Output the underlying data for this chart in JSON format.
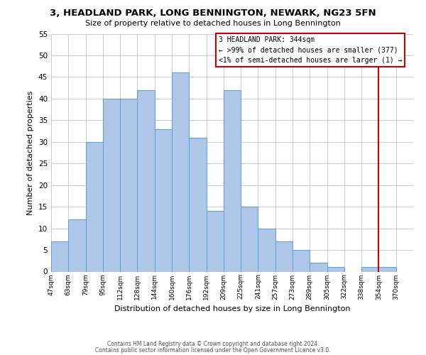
{
  "title": "3, HEADLAND PARK, LONG BENNINGTON, NEWARK, NG23 5FN",
  "subtitle": "Size of property relative to detached houses in Long Bennington",
  "xlabel": "Distribution of detached houses by size in Long Bennington",
  "ylabel": "Number of detached properties",
  "bin_labels": [
    "47sqm",
    "63sqm",
    "79sqm",
    "95sqm",
    "112sqm",
    "128sqm",
    "144sqm",
    "160sqm",
    "176sqm",
    "192sqm",
    "209sqm",
    "225sqm",
    "241sqm",
    "257sqm",
    "273sqm",
    "289sqm",
    "305sqm",
    "322sqm",
    "338sqm",
    "354sqm",
    "370sqm"
  ],
  "bar_values": [
    7,
    12,
    30,
    40,
    40,
    42,
    33,
    46,
    31,
    14,
    42,
    15,
    10,
    7,
    5,
    2,
    1,
    0,
    1,
    1,
    0
  ],
  "bar_color": "#aec6e8",
  "bar_edge_color": "#5a9fd4",
  "vline_color": "#cc0000",
  "ylim": [
    0,
    55
  ],
  "yticks": [
    0,
    5,
    10,
    15,
    20,
    25,
    30,
    35,
    40,
    45,
    50,
    55
  ],
  "annotation_title": "3 HEADLAND PARK: 344sqm",
  "annotation_line1": "← >99% of detached houses are smaller (377)",
  "annotation_line2": "<1% of semi-detached houses are larger (1) →",
  "annotation_box_color": "#cc0000",
  "footnote1": "Contains HM Land Registry data © Crown copyright and database right 2024.",
  "footnote2": "Contains public sector information licensed under the Open Government Licence v3.0.",
  "grid_color": "#cccccc",
  "background_color": "#ffffff"
}
